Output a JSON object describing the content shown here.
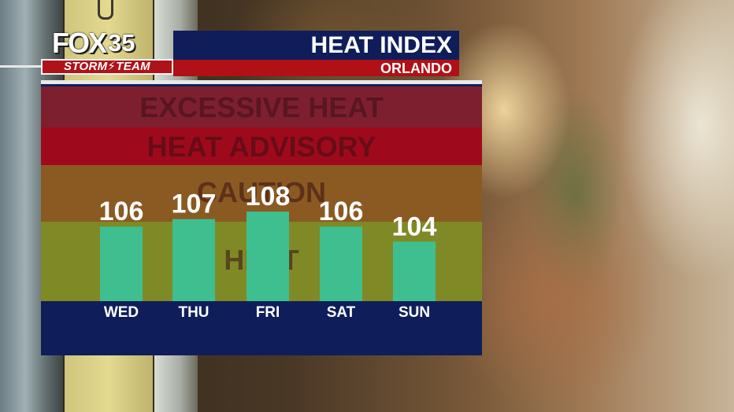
{
  "header": {
    "logo_brand": "FOX",
    "logo_number": "35",
    "logo_team": "STORM⚡TEAM",
    "title": "HEAT INDEX",
    "location": "ORLANDO"
  },
  "colors": {
    "bar": "#3fbf8f",
    "panel_bg": "#0f1e5a",
    "title_bar": "#0f1e5a",
    "location_bar": "#b11016",
    "band_excessive": "#7e1f30",
    "band_advisory": "#9e0a1c",
    "band_caution": "#8a5a22",
    "band_heat": "#7f8a26",
    "band_text": "#3a0f14"
  },
  "chart_data": {
    "type": "bar",
    "categories": [
      "WED",
      "THU",
      "FRI",
      "SAT",
      "SUN"
    ],
    "values": [
      106,
      107,
      108,
      106,
      104
    ],
    "title": "HEAT INDEX",
    "subtitle": "ORLANDO",
    "bands": [
      {
        "label": "EXCESSIVE HEAT",
        "color": "#7e1f30"
      },
      {
        "label": "HEAT ADVISORY",
        "color": "#9e0a1c"
      },
      {
        "label": "CAUTION",
        "color": "#8a5a22"
      },
      {
        "label": "HEAT",
        "color": "#7f8a26"
      }
    ],
    "grid": false,
    "legend": "none"
  }
}
